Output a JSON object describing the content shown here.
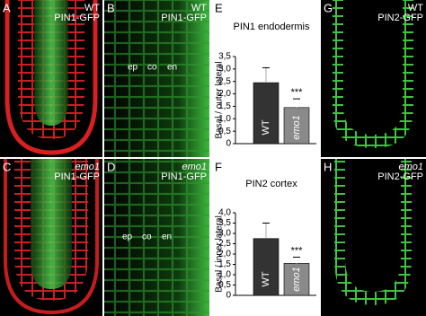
{
  "panels": [
    {
      "letter": "A",
      "genotype": "WT",
      "marker": "PIN1-GFP"
    },
    {
      "letter": "B",
      "genotype": "WT",
      "marker": "PIN1-GFP",
      "tissue_labels": [
        "ep",
        "co",
        "en"
      ]
    },
    {
      "letter": "G",
      "genotype": "WT",
      "marker": "PIN2-GFP"
    },
    {
      "letter": "C",
      "genotype": "emo1",
      "marker": "PIN1-GFP"
    },
    {
      "letter": "D",
      "genotype": "emo1",
      "marker": "PIN1-GFP",
      "tissue_labels": [
        "ep",
        "co",
        "en"
      ]
    },
    {
      "letter": "H",
      "genotype": "emo1",
      "marker": "PIN2-GFP"
    }
  ],
  "chart_data": [
    {
      "type": "bar",
      "panel_label": "E",
      "title": "PIN1 endodermis",
      "y_label": "Basal / outer lateral",
      "categories": [
        "WT",
        "emo1"
      ],
      "values": [
        2.45,
        1.45
      ],
      "errors": [
        0.6,
        0.35
      ],
      "colors": [
        "#333333",
        "#8a8a8a"
      ],
      "annotation": "***",
      "ylim": [
        0,
        3.5
      ],
      "yticks": [
        {
          "value": 0,
          "label": "0"
        },
        {
          "value": 0.5,
          "label": "0,5"
        },
        {
          "value": 1,
          "label": "1,0"
        },
        {
          "value": 1.5,
          "label": "1,5"
        },
        {
          "value": 2,
          "label": "2,0"
        },
        {
          "value": 2.5,
          "label": "2,5"
        },
        {
          "value": 3,
          "label": "3,0"
        },
        {
          "value": 3.5,
          "label": "3,5"
        }
      ]
    },
    {
      "type": "bar",
      "panel_label": "F",
      "title": "PIN2 cortex",
      "y_label": "Basal / inner lateral",
      "categories": [
        "WT",
        "emo1"
      ],
      "values": [
        2.75,
        1.55
      ],
      "errors": [
        0.75,
        0.3
      ],
      "colors": [
        "#333333",
        "#8a8a8a"
      ],
      "annotation": "***",
      "ylim": [
        0,
        4
      ],
      "yticks": [
        {
          "value": 0,
          "label": "0"
        },
        {
          "value": 0.5,
          "label": "0,5"
        },
        {
          "value": 1,
          "label": "1,0"
        },
        {
          "value": 1.5,
          "label": "1,5"
        },
        {
          "value": 2,
          "label": "2,0"
        },
        {
          "value": 2.5,
          "label": "2,5"
        },
        {
          "value": 3,
          "label": "3,0"
        },
        {
          "value": 3.5,
          "label": "3,5"
        },
        {
          "value": 4,
          "label": "4,0"
        }
      ]
    }
  ]
}
